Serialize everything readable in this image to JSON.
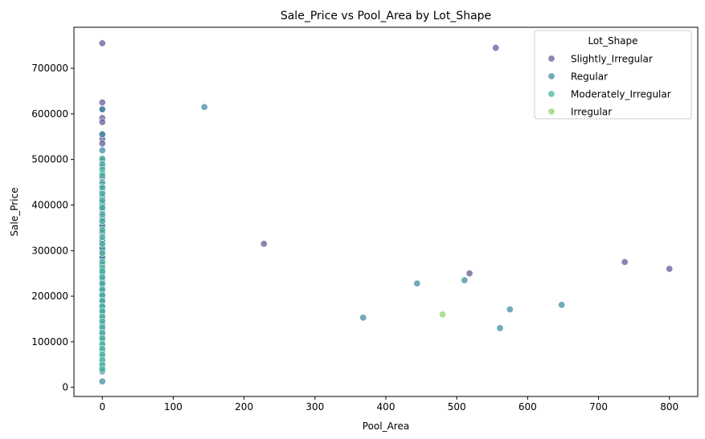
{
  "chart_data": {
    "type": "scatter",
    "title": "Sale_Price vs Pool_Area by Lot_Shape",
    "xlabel": "Pool_Area",
    "ylabel": "Sale_Price",
    "xlim": [
      -40,
      840
    ],
    "ylim": [
      -20000,
      790000
    ],
    "xticks": [
      0,
      100,
      200,
      300,
      400,
      500,
      600,
      700,
      800
    ],
    "yticks": [
      0,
      100000,
      200000,
      300000,
      400000,
      500000,
      600000,
      700000
    ],
    "grid": false,
    "legend": {
      "title": "Lot_Shape",
      "position": "top-right"
    },
    "series": [
      {
        "name": "Slightly_Irregular",
        "color": "#5b5895",
        "points": [
          [
            0,
            755000
          ],
          [
            0,
            625000
          ],
          [
            0,
            610000
          ],
          [
            0,
            591000
          ],
          [
            0,
            582000
          ],
          [
            0,
            556000
          ],
          [
            0,
            545000
          ],
          [
            0,
            535000
          ],
          [
            0,
            500000
          ],
          [
            0,
            485000
          ],
          [
            0,
            460000
          ],
          [
            0,
            445000
          ],
          [
            0,
            430000
          ],
          [
            0,
            415000
          ],
          [
            0,
            400000
          ],
          [
            0,
            388000
          ],
          [
            0,
            375000
          ],
          [
            0,
            362000
          ],
          [
            0,
            350000
          ],
          [
            0,
            338000
          ],
          [
            0,
            325000
          ],
          [
            0,
            312000
          ],
          [
            0,
            300000
          ],
          [
            0,
            290000
          ],
          [
            0,
            280000
          ],
          [
            0,
            270000
          ],
          [
            0,
            258000
          ],
          [
            0,
            245000
          ],
          [
            0,
            232000
          ],
          [
            0,
            220000
          ],
          [
            0,
            208000
          ],
          [
            0,
            196000
          ],
          [
            0,
            184000
          ],
          [
            0,
            172000
          ],
          [
            0,
            160000
          ],
          [
            0,
            148000
          ],
          [
            0,
            136000
          ],
          [
            0,
            124000
          ],
          [
            0,
            112000
          ],
          [
            555,
            745000
          ],
          [
            228,
            315000
          ],
          [
            518,
            250000
          ],
          [
            737,
            275000
          ],
          [
            800,
            260000
          ]
        ]
      },
      {
        "name": "Regular",
        "color": "#3c8a9e",
        "points": [
          [
            0,
            610000
          ],
          [
            0,
            555000
          ],
          [
            0,
            520000
          ],
          [
            0,
            498000
          ],
          [
            0,
            470000
          ],
          [
            0,
            440000
          ],
          [
            0,
            420000
          ],
          [
            0,
            405000
          ],
          [
            0,
            392000
          ],
          [
            0,
            370000
          ],
          [
            0,
            355000
          ],
          [
            0,
            340000
          ],
          [
            0,
            322000
          ],
          [
            0,
            305000
          ],
          [
            0,
            285000
          ],
          [
            0,
            268000
          ],
          [
            0,
            250000
          ],
          [
            0,
            238000
          ],
          [
            0,
            225000
          ],
          [
            0,
            212000
          ],
          [
            0,
            200000
          ],
          [
            0,
            188000
          ],
          [
            0,
            176000
          ],
          [
            0,
            165000
          ],
          [
            0,
            152000
          ],
          [
            0,
            140000
          ],
          [
            0,
            128000
          ],
          [
            0,
            116000
          ],
          [
            0,
            104000
          ],
          [
            0,
            92000
          ],
          [
            0,
            80000
          ],
          [
            0,
            68000
          ],
          [
            0,
            55000
          ],
          [
            0,
            45000
          ],
          [
            0,
            35000
          ],
          [
            0,
            13000
          ],
          [
            144,
            615000
          ],
          [
            368,
            153000
          ],
          [
            444,
            228000
          ],
          [
            511,
            235000
          ],
          [
            561,
            130000
          ],
          [
            575,
            171000
          ],
          [
            648,
            181000
          ]
        ]
      },
      {
        "name": "Moderately_Irregular",
        "color": "#45b39d",
        "points": [
          [
            0,
            502000
          ],
          [
            0,
            490000
          ],
          [
            0,
            478000
          ],
          [
            0,
            465000
          ],
          [
            0,
            450000
          ],
          [
            0,
            438000
          ],
          [
            0,
            425000
          ],
          [
            0,
            410000
          ],
          [
            0,
            395000
          ],
          [
            0,
            380000
          ],
          [
            0,
            365000
          ],
          [
            0,
            345000
          ],
          [
            0,
            330000
          ],
          [
            0,
            315000
          ],
          [
            0,
            295000
          ],
          [
            0,
            275000
          ],
          [
            0,
            262000
          ],
          [
            0,
            255000
          ],
          [
            0,
            242000
          ],
          [
            0,
            228000
          ],
          [
            0,
            215000
          ],
          [
            0,
            203000
          ],
          [
            0,
            190000
          ],
          [
            0,
            178000
          ],
          [
            0,
            168000
          ],
          [
            0,
            155000
          ],
          [
            0,
            145000
          ],
          [
            0,
            132000
          ],
          [
            0,
            120000
          ],
          [
            0,
            108000
          ],
          [
            0,
            95000
          ],
          [
            0,
            85000
          ],
          [
            0,
            72000
          ],
          [
            0,
            60000
          ],
          [
            0,
            50000
          ],
          [
            0,
            40000
          ]
        ]
      },
      {
        "name": "Irregular",
        "color": "#8fd16a",
        "points": [
          [
            480,
            160000
          ]
        ]
      }
    ]
  }
}
